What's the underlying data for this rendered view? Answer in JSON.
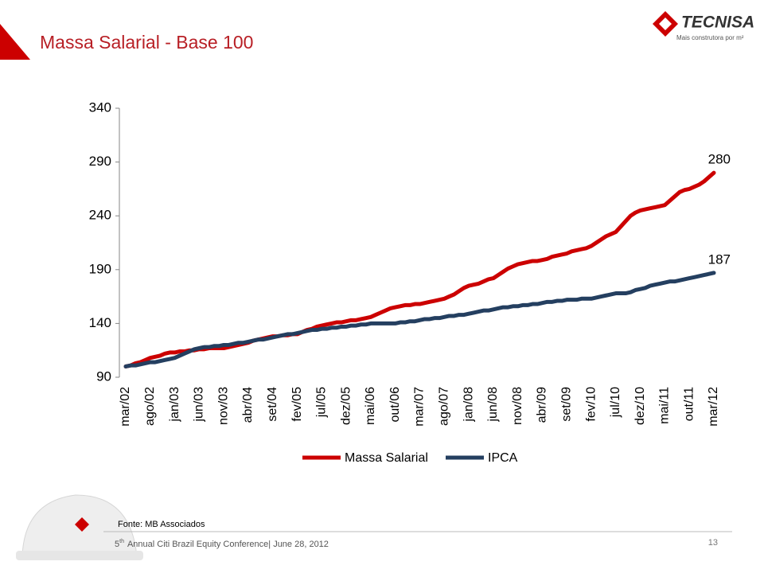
{
  "slide": {
    "logo_name": "TECNISA",
    "logo_tagline": "Mais construtora por m²",
    "source": "Fonte: MB Associados",
    "footer_number": "5",
    "footer_sup": "th",
    "footer_text": "Annual Citi Brazil Equity Conference| June 28, 2012",
    "page_number": "13"
  },
  "chart_data": {
    "type": "line",
    "title": "Massa Salarial - Base 100",
    "categories": [
      "mar/02",
      null,
      null,
      null,
      null,
      "ago/02",
      null,
      null,
      null,
      null,
      "jan/03",
      null,
      null,
      null,
      null,
      "jun/03",
      null,
      null,
      null,
      null,
      "nov/03",
      null,
      null,
      null,
      null,
      "abr/04",
      null,
      null,
      null,
      null,
      "set/04",
      null,
      null,
      null,
      null,
      "fev/05",
      null,
      null,
      null,
      null,
      "jul/05",
      null,
      null,
      null,
      null,
      "dez/05",
      null,
      null,
      null,
      null,
      "mai/06",
      null,
      null,
      null,
      null,
      "out/06",
      null,
      null,
      null,
      null,
      "mar/07",
      null,
      null,
      null,
      null,
      "ago/07",
      null,
      null,
      null,
      null,
      "jan/08",
      null,
      null,
      null,
      null,
      "jun/08",
      null,
      null,
      null,
      null,
      "nov/08",
      null,
      null,
      null,
      null,
      "abr/09",
      null,
      null,
      null,
      null,
      "set/09",
      null,
      null,
      null,
      null,
      "fev/10",
      null,
      null,
      null,
      null,
      "jul/10",
      null,
      null,
      null,
      null,
      "dez/10",
      null,
      null,
      null,
      null,
      "mai/11",
      null,
      null,
      null,
      null,
      "out/11",
      null,
      null,
      null,
      null,
      "mar/12"
    ],
    "series": [
      {
        "name": "Massa Salarial",
        "color": "#cc0000",
        "values": [
          100,
          101,
          103,
          104,
          106,
          108,
          109,
          110,
          112,
          113,
          113,
          114,
          114,
          115,
          115,
          116,
          116,
          117,
          117,
          117,
          117,
          118,
          119,
          120,
          121,
          122,
          124,
          125,
          126,
          127,
          128,
          128,
          129,
          129,
          130,
          130,
          132,
          134,
          135,
          137,
          138,
          139,
          140,
          141,
          141,
          142,
          143,
          143,
          144,
          145,
          146,
          148,
          150,
          152,
          154,
          155,
          156,
          157,
          157,
          158,
          158,
          159,
          160,
          161,
          162,
          163,
          165,
          167,
          170,
          173,
          175,
          176,
          177,
          179,
          181,
          182,
          185,
          188,
          191,
          193,
          195,
          196,
          197,
          198,
          198,
          199,
          200,
          202,
          203,
          204,
          205,
          207,
          208,
          209,
          210,
          212,
          215,
          218,
          221,
          223,
          225,
          230,
          235,
          240,
          243,
          245,
          246,
          247,
          248,
          249,
          250,
          254,
          258,
          262,
          264,
          265,
          267,
          269,
          272,
          276,
          280
        ]
      },
      {
        "name": "IPCA",
        "color": "#243f60",
        "values": [
          100,
          101,
          101,
          102,
          103,
          104,
          104,
          105,
          106,
          107,
          108,
          110,
          112,
          114,
          116,
          117,
          118,
          118,
          119,
          119,
          120,
          120,
          121,
          122,
          122,
          123,
          124,
          125,
          125,
          126,
          127,
          128,
          129,
          130,
          130,
          131,
          132,
          133,
          134,
          134,
          135,
          135,
          136,
          136,
          137,
          137,
          138,
          138,
          139,
          139,
          140,
          140,
          140,
          140,
          140,
          140,
          141,
          141,
          142,
          142,
          143,
          144,
          144,
          145,
          145,
          146,
          147,
          147,
          148,
          148,
          149,
          150,
          151,
          152,
          152,
          153,
          154,
          155,
          155,
          156,
          156,
          157,
          157,
          158,
          158,
          159,
          160,
          160,
          161,
          161,
          162,
          162,
          162,
          163,
          163,
          163,
          164,
          165,
          166,
          167,
          168,
          168,
          168,
          169,
          171,
          172,
          173,
          175,
          176,
          177,
          178,
          179,
          179,
          180,
          181,
          182,
          183,
          184,
          185,
          186,
          187
        ]
      }
    ],
    "ylim": [
      90,
      340
    ],
    "yticks": [
      90,
      140,
      190,
      240,
      290,
      340
    ],
    "grid": false,
    "legend": "bottom",
    "end_labels": true
  }
}
